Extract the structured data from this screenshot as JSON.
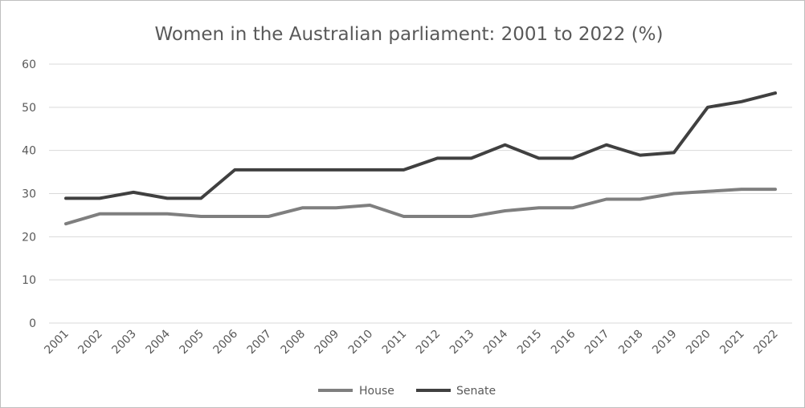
{
  "chart_data": {
    "type": "line",
    "title": "Women in the Australian parliament: 2001 to 2022 (%)",
    "xlabel": "",
    "ylabel": "",
    "x": [
      "2001",
      "2002",
      "2003",
      "2004",
      "2005",
      "2006",
      "2007",
      "2008",
      "2009",
      "2010",
      "2011",
      "2012",
      "2013",
      "2014",
      "2015",
      "2016",
      "2017",
      "2018",
      "2019",
      "2020",
      "2021",
      "2022"
    ],
    "yticks": [
      "0",
      "10",
      "20",
      "30",
      "40",
      "50",
      "60"
    ],
    "ylim": [
      0,
      60
    ],
    "grid": true,
    "legend_position": "bottom",
    "series": [
      {
        "name": "House",
        "color": "#7f7f7f",
        "values": [
          23.0,
          25.3,
          25.3,
          25.3,
          24.7,
          24.7,
          24.7,
          26.7,
          26.7,
          27.3,
          24.7,
          24.7,
          24.7,
          26.0,
          26.7,
          26.7,
          28.7,
          28.7,
          30.0,
          30.5,
          31.0,
          31.0
        ]
      },
      {
        "name": "Senate",
        "color": "#404040",
        "values": [
          28.9,
          28.9,
          30.3,
          28.9,
          28.9,
          35.5,
          35.5,
          35.5,
          35.5,
          35.5,
          35.5,
          38.2,
          38.2,
          41.3,
          38.2,
          38.2,
          41.3,
          38.9,
          39.5,
          50.0,
          51.3,
          53.3
        ]
      }
    ]
  }
}
